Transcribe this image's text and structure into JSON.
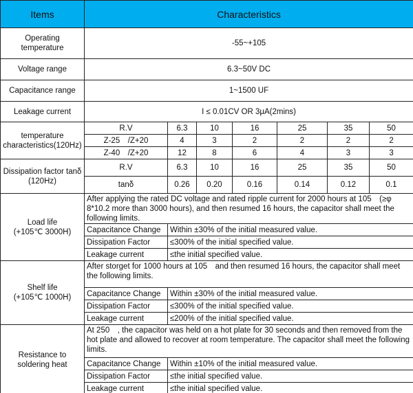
{
  "header": {
    "items": "Items",
    "characteristics": "Characteristics",
    "color": "#00aeef"
  },
  "simple_rows": [
    {
      "item": "Operating temperature",
      "value": "-55~+105"
    },
    {
      "item": "Voltage range",
      "value": "6.3~50V DC"
    },
    {
      "item": "Capacitance range",
      "value": "1~1500 UF"
    },
    {
      "item": "Leakage current",
      "value": "I ≤ 0.01CV OR 3μA(2mins)"
    }
  ],
  "temp_char": {
    "label": "temperature characteristics(120Hz)",
    "rows": [
      [
        "R.V",
        "6.3",
        "10",
        "16",
        "25",
        "35",
        "50"
      ],
      [
        "Z-25　/Z+20",
        "4",
        "3",
        "2",
        "2",
        "2",
        "2"
      ],
      [
        "Z-40　/Z+20",
        "12",
        "8",
        "6",
        "4",
        "3",
        "3"
      ]
    ]
  },
  "dissipation": {
    "label": "Dissipation factor tanδ (120Hz)",
    "rows": [
      [
        "R.V",
        "6.3",
        "10",
        "16",
        "25",
        "35",
        "50"
      ],
      [
        "tanδ",
        "0.26",
        "0.20",
        "0.16",
        "0.14",
        "0.12",
        "0.1"
      ]
    ]
  },
  "load_life": {
    "label1": "Load life",
    "label2": "(+105℃ 3000H)",
    "text": "After applying the rated DC voltage and rated ripple current for 2000 hours at 105　(≥φ 8*10.2 more than 3000 hours), and then resumed 16 hours, the capacitor shall meet the following limits.",
    "limits": [
      [
        "Capacitance Change",
        "Within ±30% of the initial measured value."
      ],
      [
        "Dissipation Factor",
        "≤300% of the initial specified value."
      ],
      [
        "Leakage current",
        "≤the initial specified value."
      ]
    ]
  },
  "shelf_life": {
    "label1": "Shelf life",
    "label2": "(+105℃ 1000H)",
    "text": "After storget for 1000 hours at 105　and then resumed 16 hours, the capacitor shall meet the following limits.",
    "limits": [
      [
        "Capacitance Change",
        "Within ±30% of the initial measured value."
      ],
      [
        "Dissipation Factor",
        "≤300% of the initial specified value."
      ],
      [
        "Leakage current",
        "≤200% of the initial specified value."
      ]
    ]
  },
  "soldering": {
    "label1": "Resistance to",
    "label2": "soldering heat",
    "text": "At 250　, the capacitor was held on a hot plate for 30 seconds and then removed from the hot plate and allowed to recover at room temperature. The capacitor shall meet the following limits.",
    "limits": [
      [
        "Capacitance Change",
        "Within ±10% of the initial measured value."
      ],
      [
        "Dissipation Factor",
        "≤the initial specified value."
      ],
      [
        "Leakage current",
        "≤the initial specified value."
      ]
    ]
  }
}
